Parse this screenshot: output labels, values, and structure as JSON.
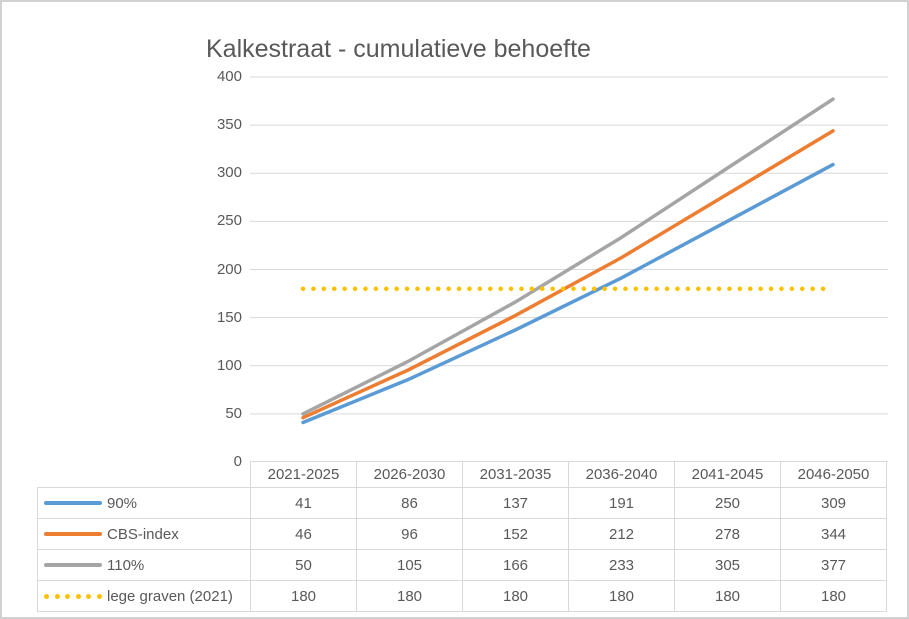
{
  "chart_data": {
    "type": "line",
    "title": "Kalkestraat - cumulatieve behoefte",
    "categories": [
      "2021-2025",
      "2026-2030",
      "2031-2035",
      "2036-2040",
      "2041-2045",
      "2046-2050"
    ],
    "series": [
      {
        "name": "90%",
        "values": [
          41,
          86,
          137,
          191,
          250,
          309
        ],
        "color": "#5B9BD5",
        "line_style": "solid"
      },
      {
        "name": "CBS-index",
        "values": [
          46,
          96,
          152,
          212,
          278,
          344
        ],
        "color": "#ED7D31",
        "line_style": "solid"
      },
      {
        "name": "110%",
        "values": [
          50,
          105,
          166,
          233,
          305,
          377
        ],
        "color": "#A5A5A5",
        "line_style": "solid"
      },
      {
        "name": "lege graven (2021)",
        "values": [
          180,
          180,
          180,
          180,
          180,
          180
        ],
        "color": "#FFC000",
        "line_style": "dotted"
      }
    ],
    "ylim": [
      0,
      400
    ],
    "yticks": [
      400,
      350,
      300,
      250,
      200,
      150,
      100,
      50,
      0
    ],
    "grid": true,
    "legend_position": "table-left",
    "colors": {
      "title_text": "#595959",
      "axis_text": "#595959",
      "table_text": "#595959",
      "gridline": "#D9D9D9",
      "table_border": "#D9D9D9"
    }
  }
}
